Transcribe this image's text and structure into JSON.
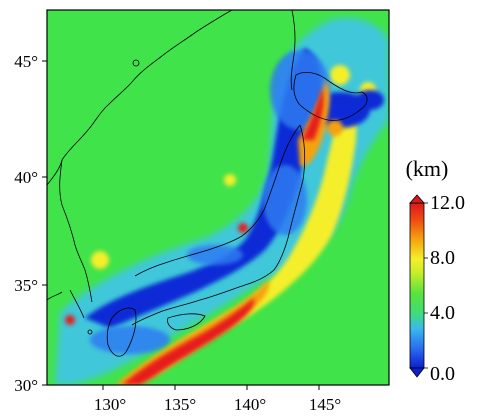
{
  "map": {
    "lon_ticks": [
      "130°",
      "135°",
      "140°",
      "145°"
    ],
    "lat_ticks": [
      "45°",
      "40°",
      "35°",
      "30°"
    ],
    "colors": {
      "background_green": "#41e34a",
      "deep_blue": "#0b2cd6",
      "mid_blue": "#2f7cf2",
      "light_blue": "#3fc4ea",
      "yellow": "#f4ef2a",
      "orange": "#f5a20f",
      "red": "#e61e1e",
      "coastline": "#000000"
    }
  },
  "colorbar": {
    "unit": "(km)",
    "labels": [
      "12.0",
      "8.0",
      "4.0",
      "0.0"
    ],
    "min": 0.0,
    "max": 12.0
  }
}
